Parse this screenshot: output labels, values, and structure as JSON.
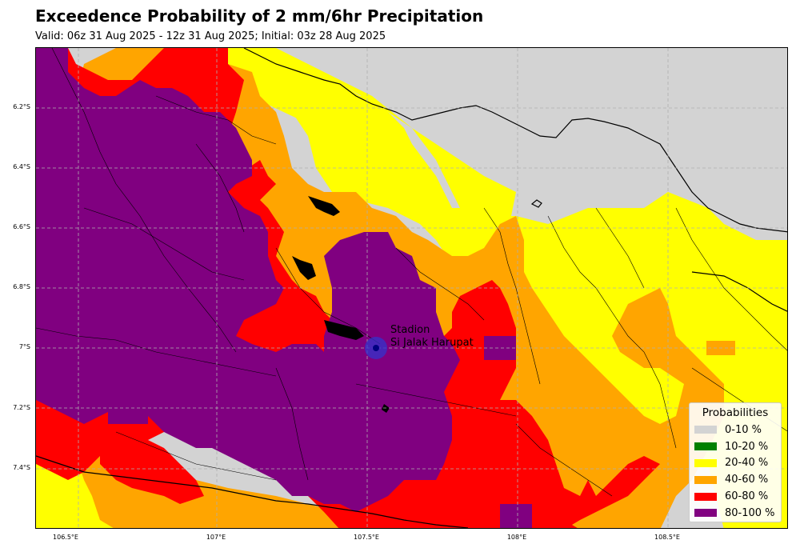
{
  "title": "Exceedence Probability of 2 mm/6hr Precipitation",
  "subtitle": "Valid: 06z 31 Aug 2025 - 12z 31 Aug 2025; Initial: 03z 28 Aug 2025",
  "axes": {
    "lon_range": [
      106.39,
      108.89
    ],
    "lat_range": [
      -7.6,
      -6.0
    ],
    "x_ticks": [
      {
        "value": 106.5,
        "label": "106.5°E"
      },
      {
        "value": 107.0,
        "label": "107°E"
      },
      {
        "value": 107.5,
        "label": "107.5°E"
      },
      {
        "value": 108.0,
        "label": "108°E"
      },
      {
        "value": 108.5,
        "label": "108.5°E"
      }
    ],
    "y_ticks": [
      {
        "value": -6.2,
        "label": "6.2°S"
      },
      {
        "value": -6.4,
        "label": "6.4°S"
      },
      {
        "value": -6.6,
        "label": "6.6°S"
      },
      {
        "value": -6.8,
        "label": "6.8°S"
      },
      {
        "value": -7.0,
        "label": "7°S"
      },
      {
        "value": -7.2,
        "label": "7.2°S"
      },
      {
        "value": -7.4,
        "label": "7.4°S"
      }
    ],
    "grid": true
  },
  "station": {
    "name_line1": "Stadion",
    "name_line2": "Si Jalak Harupat",
    "lon": 107.53,
    "lat": -7.0
  },
  "legend": {
    "title": "Probabilities",
    "position": "bottom-right",
    "items": [
      {
        "label": "0-10 %",
        "color": "#d3d3d3"
      },
      {
        "label": "10-20 %",
        "color": "#008000"
      },
      {
        "label": "20-40 %",
        "color": "#ffff00"
      },
      {
        "label": "40-60 %",
        "color": "#ffa500"
      },
      {
        "label": "60-80 %",
        "color": "#ff0000"
      },
      {
        "label": "80-100 %",
        "color": "#800080"
      }
    ]
  }
}
